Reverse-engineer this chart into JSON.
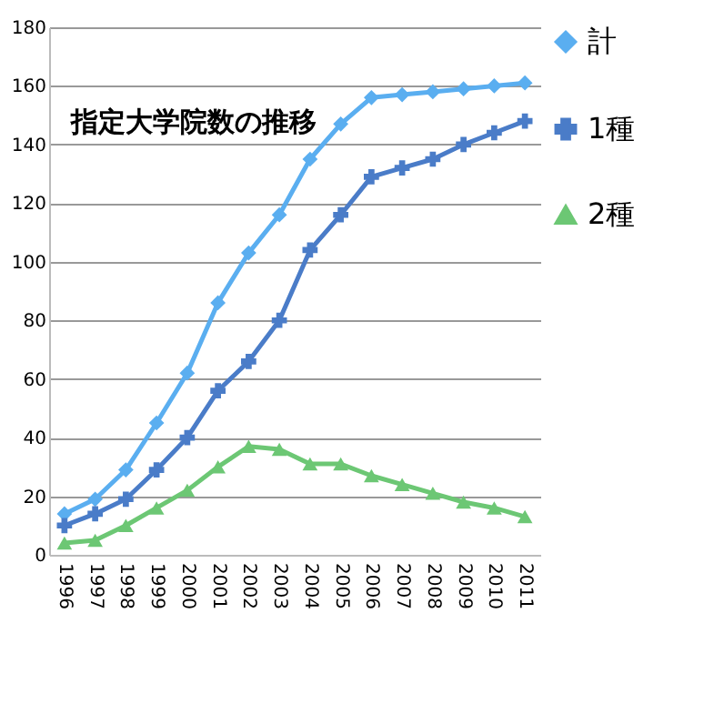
{
  "chart_data": {
    "type": "line",
    "title": "指定大学院数の推移",
    "categories": [
      "1996",
      "1997",
      "1998",
      "1999",
      "2000",
      "2001",
      "2002",
      "2003",
      "2004",
      "2005",
      "2006",
      "2007",
      "2008",
      "2009",
      "2010",
      "2011"
    ],
    "series": [
      {
        "name": "計",
        "color": "#5aaef0",
        "marker": "diamond",
        "values": [
          14,
          19,
          29,
          45,
          62,
          86,
          103,
          116,
          135,
          147,
          156,
          157,
          158,
          159,
          160,
          161
        ]
      },
      {
        "name": "1種",
        "color": "#4a7cc8",
        "marker": "cross",
        "values": [
          10,
          14,
          19,
          29,
          40,
          56,
          66,
          80,
          104,
          116,
          129,
          132,
          135,
          140,
          144,
          148
        ]
      },
      {
        "name": "2種",
        "color": "#6cc774",
        "marker": "triangle",
        "values": [
          4,
          5,
          10,
          16,
          22,
          30,
          37,
          36,
          31,
          31,
          27,
          24,
          21,
          18,
          16,
          13
        ]
      }
    ],
    "ylim": [
      0,
      180
    ],
    "yticks": [
      0,
      20,
      40,
      60,
      80,
      100,
      120,
      140,
      160,
      180
    ],
    "grid": "y",
    "legend": "right"
  }
}
